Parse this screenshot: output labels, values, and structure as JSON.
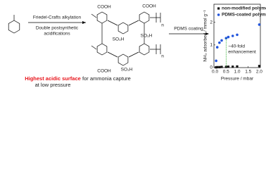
{
  "scheme": {
    "step1_above": "Friedel-Crafts alkylation",
    "step1_below": [
      "Double postsynthetic",
      "acidifications"
    ],
    "step2": "PDMS coating",
    "polymer_labels": [
      "COOH",
      "COOH",
      "SO₃H",
      "SO₃H",
      "n",
      "COOH",
      "SO₃H",
      "n"
    ],
    "caption": [
      "Highest acidic surface",
      "for ammonia capture",
      "at low pressure"
    ]
  },
  "chart_data": {
    "type": "scatter",
    "x_label": "Pressure / mbar",
    "y_label": "NH₃ adsorbed / mmol g⁻¹",
    "xlim": [
      -0.05,
      2.05
    ],
    "ylim": [
      0,
      2.8
    ],
    "xticks": [
      {
        "value": 0,
        "label": "0.0"
      },
      0.5,
      {
        "value": 1,
        "label": "1.0"
      },
      1.5,
      {
        "value": 2,
        "label": "2.0"
      }
    ],
    "yticks": [
      0,
      1,
      2
    ],
    "series": [
      {
        "name": "non-modified polymer",
        "color": "#111111",
        "marker": "square",
        "x": [
          0.05,
          0.1,
          0.2,
          0.3,
          0.5,
          0.6,
          0.8,
          1.0,
          2.0
        ],
        "values": [
          0.01,
          0.02,
          0.02,
          0.03,
          0.03,
          0.04,
          0.04,
          0.05,
          0.07
        ]
      },
      {
        "name": "PDMS-coated polymer",
        "color": "#2255dd",
        "marker": "circle",
        "x": [
          0.05,
          0.1,
          0.2,
          0.3,
          0.5,
          0.6,
          0.8,
          1.0,
          2.0
        ],
        "values": [
          0.3,
          0.9,
          1.1,
          1.2,
          1.3,
          1.35,
          1.4,
          1.45,
          1.9
        ]
      }
    ],
    "annotation": [
      "~40-fold",
      "enhancement"
    ],
    "annotation_color": "#22aa22"
  }
}
